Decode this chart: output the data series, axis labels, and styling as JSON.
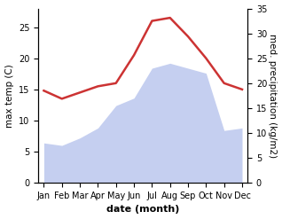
{
  "months": [
    "Jan",
    "Feb",
    "Mar",
    "Apr",
    "May",
    "Jun",
    "Jul",
    "Aug",
    "Sep",
    "Oct",
    "Nov",
    "Dec"
  ],
  "temperature": [
    14.8,
    13.5,
    14.5,
    15.5,
    16.0,
    20.5,
    26.0,
    26.5,
    23.5,
    20.0,
    16.0,
    15.0
  ],
  "precipitation": [
    8.0,
    7.5,
    9.0,
    11.0,
    15.5,
    17.0,
    23.0,
    24.0,
    23.0,
    22.0,
    10.5,
    11.0
  ],
  "temp_color": "#cc3333",
  "precip_color": "#c5cff0",
  "left_ylim": [
    0,
    28
  ],
  "right_ylim": [
    0,
    35
  ],
  "left_yticks": [
    0,
    5,
    10,
    15,
    20,
    25
  ],
  "right_yticks": [
    0,
    5,
    10,
    15,
    20,
    25,
    30,
    35
  ],
  "ylabel_left": "max temp (C)",
  "ylabel_right": "med. precipitation (kg/m2)",
  "xlabel": "date (month)",
  "background_color": "#ffffff",
  "temp_linewidth": 1.8,
  "xlabel_fontsize": 8,
  "ylabel_fontsize": 7.5,
  "tick_fontsize": 7
}
